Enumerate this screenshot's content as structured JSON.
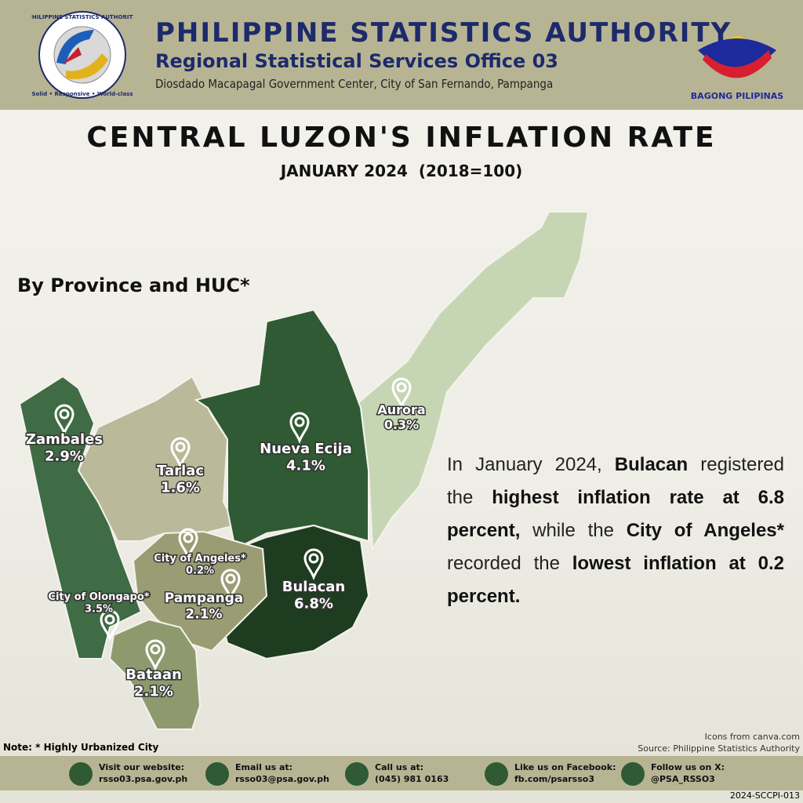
{
  "header": {
    "logo_ring": "PHILIPPINE STATISTICS AUTHORITY",
    "logo_motto": "Solid • Responsive • World-class",
    "org": "PHILIPPINE STATISTICS AUTHORITY",
    "office": "Regional Statistical Services Office 03",
    "address": "Diosdado Macapagal Government Center, City of San Fernando, Pampanga",
    "badge": "BAGONG PILIPINAS"
  },
  "title": "CENTRAL LUZON'S INFLATION RATE",
  "subtitle": "JANUARY 2024  (2018=100)",
  "section_label": "By Province and HUC*",
  "regions": [
    {
      "name": "Zambales",
      "rate": "2.9%"
    },
    {
      "name": "Tarlac",
      "rate": "1.6%"
    },
    {
      "name": "Nueva Ecija",
      "rate": "4.1%"
    },
    {
      "name": "Aurora",
      "rate": "0.3%"
    },
    {
      "name": "City of Angeles*",
      "rate": "0.2%"
    },
    {
      "name": "Pampanga",
      "rate": "2.1%"
    },
    {
      "name": "Bulacan",
      "rate": "6.8%"
    },
    {
      "name": "City of Olongapo*",
      "rate": "3.5%"
    },
    {
      "name": "Bataan",
      "rate": "2.1%"
    }
  ],
  "summary": [
    {
      "text": "In January 2024, ",
      "bold": false
    },
    {
      "text": "Bulacan",
      "bold": true
    },
    {
      "text": " registered the ",
      "bold": false
    },
    {
      "text": "highest inflation rate at 6.8 percent,",
      "bold": true
    },
    {
      "text": " while the ",
      "bold": false
    },
    {
      "text": "City of Angeles*",
      "bold": true
    },
    {
      "text": " recorded the ",
      "bold": false
    },
    {
      "text": "lowest inflation at 0.2 percent.",
      "bold": true
    }
  ],
  "note": "Note: * Highly Urbanized City",
  "credit_icons": "Icons from canva.com",
  "source": "Source: Philippine Statistics Authority",
  "contacts": [
    {
      "label": "Visit our website:",
      "value": "rsso03.psa.gov.ph"
    },
    {
      "label": "Email us at:",
      "value": "rsso03@psa.gov.ph"
    },
    {
      "label": "Call us at:",
      "value": "(045) 981 0163"
    },
    {
      "label": "Like us on Facebook:",
      "value": "fb.com/psarsso3"
    },
    {
      "label": "Follow us on X:",
      "value": "@PSA_RSSO3"
    }
  ],
  "code": "2024-SCCPI-013"
}
